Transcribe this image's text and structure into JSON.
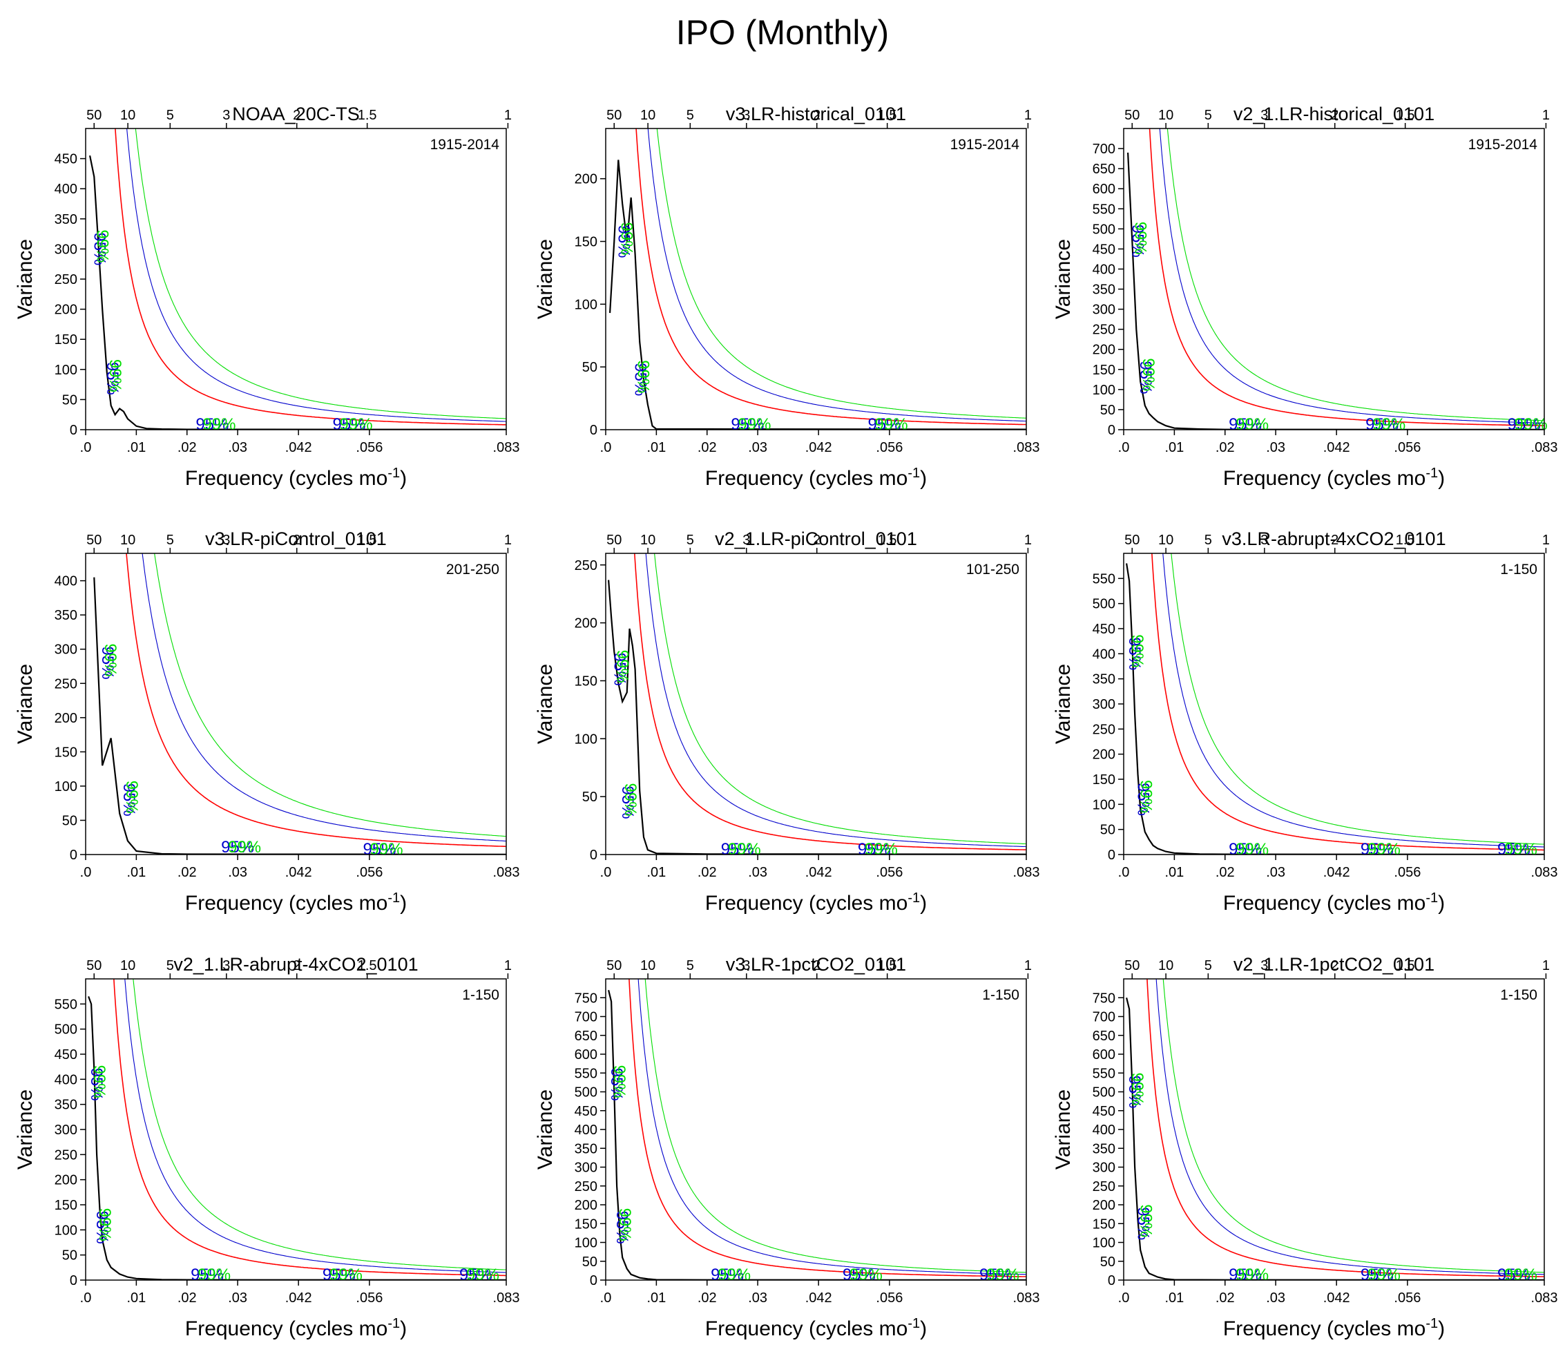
{
  "figure": {
    "title": "IPO (Monthly)"
  },
  "labels": {
    "ylabel": "Variance",
    "xlabel_main": "Frequency (cycles mo",
    "xlabel_sup": "-1",
    "xlabel_close": ")",
    "conf_95": "95%",
    "conf_99": "99%"
  },
  "colors": {
    "spectrum": "#000000",
    "red_noise": "#ff0000",
    "conf95": "#0000cc",
    "conf99": "#00dd00"
  },
  "chart_data": [
    {
      "type": "line",
      "title": "NOAA_20C-TS",
      "period": "1915-2014",
      "xlim": [
        0,
        0.083
      ],
      "ylim": [
        0,
        500
      ],
      "x_ticks": [
        0,
        0.01,
        0.02,
        0.03,
        0.042,
        0.056,
        0.083
      ],
      "x_tick_labels": [
        ".0",
        ".01",
        ".02",
        ".03",
        ".042",
        ".056",
        ".083"
      ],
      "top_ticks": [
        0.00167,
        0.00833,
        0.01667,
        0.02778,
        0.04167,
        0.05556,
        0.08333
      ],
      "top_tick_labels": [
        "50",
        "10",
        "5",
        "3",
        "2",
        "1.5",
        "1"
      ],
      "y_ticks": [
        0,
        50,
        100,
        150,
        200,
        250,
        300,
        350,
        400,
        450
      ],
      "spectrum": [
        [
          0.00083,
          455
        ],
        [
          0.00167,
          420
        ],
        [
          0.0025,
          310
        ],
        [
          0.0033,
          200
        ],
        [
          0.0042,
          95
        ],
        [
          0.005,
          40
        ],
        [
          0.0058,
          25
        ],
        [
          0.0067,
          35
        ],
        [
          0.0075,
          30
        ],
        [
          0.0083,
          18
        ],
        [
          0.01,
          6
        ],
        [
          0.012,
          2
        ],
        [
          0.015,
          1
        ],
        [
          0.02,
          0.5
        ],
        [
          0.083,
          0.2
        ]
      ],
      "red_scale": 180,
      "conf_labels": [
        [
          0.00167,
          300
        ],
        [
          0.0042,
          85
        ],
        [
          0.025,
          0
        ],
        [
          0.052,
          0
        ]
      ]
    },
    {
      "type": "line",
      "title": "v3.LR-historical_0101",
      "period": "1915-2014",
      "xlim": [
        0,
        0.083
      ],
      "ylim": [
        0,
        240
      ],
      "x_ticks": [
        0,
        0.01,
        0.02,
        0.03,
        0.042,
        0.056,
        0.083
      ],
      "x_tick_labels": [
        ".0",
        ".01",
        ".02",
        ".03",
        ".042",
        ".056",
        ".083"
      ],
      "top_ticks": [
        0.00167,
        0.00833,
        0.01667,
        0.02778,
        0.04167,
        0.05556,
        0.08333
      ],
      "top_tick_labels": [
        "50",
        "10",
        "5",
        "3",
        "2",
        "1.5",
        "1"
      ],
      "y_ticks": [
        0,
        50,
        100,
        150,
        200
      ],
      "spectrum": [
        [
          0.00083,
          93
        ],
        [
          0.00167,
          150
        ],
        [
          0.0025,
          215
        ],
        [
          0.0033,
          180
        ],
        [
          0.0042,
          150
        ],
        [
          0.005,
          185
        ],
        [
          0.0058,
          140
        ],
        [
          0.0067,
          70
        ],
        [
          0.0075,
          40
        ],
        [
          0.0083,
          20
        ],
        [
          0.0092,
          3
        ],
        [
          0.01,
          0.5
        ],
        [
          0.083,
          0.2
        ]
      ],
      "red_scale": 90,
      "conf_labels": [
        [
          0.0025,
          150
        ],
        [
          0.0058,
          40
        ],
        [
          0.028,
          0
        ],
        [
          0.055,
          0
        ]
      ]
    },
    {
      "type": "line",
      "title": "v2_1.LR-historical_0101",
      "period": "1915-2014",
      "xlim": [
        0,
        0.083
      ],
      "ylim": [
        0,
        750
      ],
      "x_ticks": [
        0,
        0.01,
        0.02,
        0.03,
        0.042,
        0.056,
        0.083
      ],
      "x_tick_labels": [
        ".0",
        ".01",
        ".02",
        ".03",
        ".042",
        ".056",
        ".083"
      ],
      "top_ticks": [
        0.00167,
        0.00833,
        0.01667,
        0.02778,
        0.04167,
        0.05556,
        0.08333
      ],
      "top_tick_labels": [
        "50",
        "10",
        "5",
        "3",
        "2",
        "1.5",
        "1"
      ],
      "y_ticks": [
        0,
        50,
        100,
        150,
        200,
        250,
        300,
        350,
        400,
        450,
        500,
        550,
        600,
        650,
        700
      ],
      "spectrum": [
        [
          0.00083,
          690
        ],
        [
          0.00167,
          470
        ],
        [
          0.0025,
          250
        ],
        [
          0.0033,
          120
        ],
        [
          0.0042,
          60
        ],
        [
          0.005,
          40
        ],
        [
          0.0058,
          30
        ],
        [
          0.0067,
          20
        ],
        [
          0.0083,
          10
        ],
        [
          0.01,
          4
        ],
        [
          0.015,
          1.5
        ],
        [
          0.02,
          0.5
        ],
        [
          0.083,
          0.2
        ]
      ],
      "red_scale": 220,
      "conf_labels": [
        [
          0.00167,
          470
        ],
        [
          0.0033,
          130
        ],
        [
          0.024,
          0
        ],
        [
          0.051,
          0
        ],
        [
          0.079,
          0
        ]
      ]
    },
    {
      "type": "line",
      "title": "v3.LR-piControl_0101",
      "period": "201-250",
      "xlim": [
        0,
        0.083
      ],
      "ylim": [
        0,
        440
      ],
      "x_ticks": [
        0,
        0.01,
        0.02,
        0.03,
        0.042,
        0.056,
        0.083
      ],
      "x_tick_labels": [
        ".0",
        ".01",
        ".02",
        ".03",
        ".042",
        ".056",
        ".083"
      ],
      "top_ticks": [
        0.00167,
        0.00833,
        0.01667,
        0.02778,
        0.04167,
        0.05556,
        0.08333
      ],
      "top_tick_labels": [
        "50",
        "10",
        "5",
        "3",
        "2",
        "1.5",
        "1"
      ],
      "y_ticks": [
        0,
        50,
        100,
        150,
        200,
        250,
        300,
        350,
        400
      ],
      "spectrum": [
        [
          0.00167,
          405
        ],
        [
          0.0033,
          130
        ],
        [
          0.005,
          170
        ],
        [
          0.0067,
          60
        ],
        [
          0.0083,
          20
        ],
        [
          0.01,
          5
        ],
        [
          0.015,
          1
        ],
        [
          0.02,
          0.5
        ],
        [
          0.083,
          0.2
        ]
      ],
      "red_scale": 260,
      "conf_labels": [
        [
          0.0033,
          280
        ],
        [
          0.0075,
          80
        ],
        [
          0.03,
          3
        ],
        [
          0.058,
          0
        ]
      ]
    },
    {
      "type": "line",
      "title": "v2_1.LR-piControl_0101",
      "period": "101-250",
      "xlim": [
        0,
        0.083
      ],
      "ylim": [
        0,
        260
      ],
      "x_ticks": [
        0,
        0.01,
        0.02,
        0.03,
        0.042,
        0.056,
        0.083
      ],
      "x_tick_labels": [
        ".0",
        ".01",
        ".02",
        ".03",
        ".042",
        ".056",
        ".083"
      ],
      "top_ticks": [
        0.00167,
        0.00833,
        0.01667,
        0.02778,
        0.04167,
        0.05556,
        0.08333
      ],
      "top_tick_labels": [
        "50",
        "10",
        "5",
        "3",
        "2",
        "1.5",
        "1"
      ],
      "y_ticks": [
        0,
        50,
        100,
        150,
        200,
        250
      ],
      "spectrum": [
        [
          0.00056,
          237
        ],
        [
          0.00111,
          205
        ],
        [
          0.00167,
          175
        ],
        [
          0.0025,
          148
        ],
        [
          0.0033,
          132
        ],
        [
          0.0042,
          140
        ],
        [
          0.0047,
          195
        ],
        [
          0.0053,
          180
        ],
        [
          0.0058,
          160
        ],
        [
          0.0067,
          55
        ],
        [
          0.0075,
          15
        ],
        [
          0.0083,
          4
        ],
        [
          0.01,
          1
        ],
        [
          0.02,
          0.4
        ],
        [
          0.083,
          0.2
        ]
      ],
      "red_scale": 90,
      "conf_labels": [
        [
          0.0017,
          160
        ],
        [
          0.0033,
          45
        ],
        [
          0.026,
          0
        ],
        [
          0.053,
          0
        ]
      ]
    },
    {
      "type": "line",
      "title": "v3.LR-abrupt-4xCO2_0101",
      "period": "1-150",
      "xlim": [
        0,
        0.083
      ],
      "ylim": [
        0,
        600
      ],
      "x_ticks": [
        0,
        0.01,
        0.02,
        0.03,
        0.042,
        0.056,
        0.083
      ],
      "x_tick_labels": [
        ".0",
        ".01",
        ".02",
        ".03",
        ".042",
        ".056",
        ".083"
      ],
      "top_ticks": [
        0.00167,
        0.00833,
        0.01667,
        0.02778,
        0.04167,
        0.05556,
        0.08333
      ],
      "top_tick_labels": [
        "50",
        "10",
        "5",
        "3",
        "2",
        "1.5",
        "1"
      ],
      "y_ticks": [
        0,
        50,
        100,
        150,
        200,
        250,
        300,
        350,
        400,
        450,
        500,
        550
      ],
      "spectrum": [
        [
          0.00056,
          580
        ],
        [
          0.00111,
          545
        ],
        [
          0.00167,
          420
        ],
        [
          0.0022,
          280
        ],
        [
          0.0028,
          160
        ],
        [
          0.0033,
          90
        ],
        [
          0.0042,
          45
        ],
        [
          0.005,
          30
        ],
        [
          0.0058,
          18
        ],
        [
          0.0067,
          12
        ],
        [
          0.0083,
          6
        ],
        [
          0.01,
          3
        ],
        [
          0.015,
          1
        ],
        [
          0.02,
          0.5
        ],
        [
          0.083,
          0.2
        ]
      ],
      "red_scale": 200,
      "conf_labels": [
        [
          0.00111,
          400
        ],
        [
          0.0028,
          110
        ],
        [
          0.024,
          0
        ],
        [
          0.05,
          0
        ],
        [
          0.077,
          0
        ]
      ]
    },
    {
      "type": "line",
      "title": "v2_1.LR-abrupt-4xCO2_0101",
      "period": "1-150",
      "xlim": [
        0,
        0.083
      ],
      "ylim": [
        0,
        600
      ],
      "x_ticks": [
        0,
        0.01,
        0.02,
        0.03,
        0.042,
        0.056,
        0.083
      ],
      "x_tick_labels": [
        ".0",
        ".01",
        ".02",
        ".03",
        ".042",
        ".056",
        ".083"
      ],
      "top_ticks": [
        0.00167,
        0.00833,
        0.01667,
        0.02778,
        0.04167,
        0.05556,
        0.08333
      ],
      "top_tick_labels": [
        "50",
        "10",
        "5",
        "3",
        "2",
        "1.5",
        "1"
      ],
      "y_ticks": [
        0,
        50,
        100,
        150,
        200,
        250,
        300,
        350,
        400,
        450,
        500,
        550
      ],
      "spectrum": [
        [
          0.00056,
          565
        ],
        [
          0.00111,
          550
        ],
        [
          0.00167,
          420
        ],
        [
          0.0022,
          250
        ],
        [
          0.0028,
          140
        ],
        [
          0.0033,
          80
        ],
        [
          0.0042,
          40
        ],
        [
          0.005,
          25
        ],
        [
          0.0067,
          12
        ],
        [
          0.0083,
          6
        ],
        [
          0.01,
          3
        ],
        [
          0.015,
          1
        ],
        [
          0.02,
          0.5
        ],
        [
          0.083,
          0.2
        ]
      ],
      "red_scale": 200,
      "conf_labels": [
        [
          0.00111,
          390
        ],
        [
          0.0022,
          105
        ],
        [
          0.024,
          0
        ],
        [
          0.05,
          0
        ],
        [
          0.077,
          0
        ]
      ]
    },
    {
      "type": "line",
      "title": "v3.LR-1pctCO2_0101",
      "period": "1-150",
      "xlim": [
        0,
        0.083
      ],
      "ylim": [
        0,
        800
      ],
      "x_ticks": [
        0,
        0.01,
        0.02,
        0.03,
        0.042,
        0.056,
        0.083
      ],
      "x_tick_labels": [
        ".0",
        ".01",
        ".02",
        ".03",
        ".042",
        ".056",
        ".083"
      ],
      "top_ticks": [
        0.00167,
        0.00833,
        0.01667,
        0.02778,
        0.04167,
        0.05556,
        0.08333
      ],
      "top_tick_labels": [
        "50",
        "10",
        "5",
        "3",
        "2",
        "1.5",
        "1"
      ],
      "y_ticks": [
        0,
        50,
        100,
        150,
        200,
        250,
        300,
        350,
        400,
        450,
        500,
        550,
        600,
        650,
        700,
        750
      ],
      "spectrum": [
        [
          0.00056,
          770
        ],
        [
          0.00111,
          740
        ],
        [
          0.00167,
          500
        ],
        [
          0.0022,
          250
        ],
        [
          0.0028,
          120
        ],
        [
          0.0033,
          60
        ],
        [
          0.0042,
          30
        ],
        [
          0.005,
          15
        ],
        [
          0.0067,
          6
        ],
        [
          0.0083,
          3
        ],
        [
          0.01,
          1
        ],
        [
          0.02,
          0.5
        ],
        [
          0.083,
          0.2
        ]
      ],
      "red_scale": 200,
      "conf_labels": [
        [
          0.00111,
          520
        ],
        [
          0.0022,
          140
        ],
        [
          0.024,
          0
        ],
        [
          0.05,
          0
        ],
        [
          0.077,
          0
        ]
      ]
    },
    {
      "type": "line",
      "title": "v2_1.LR-1pctCO2_0101",
      "period": "1-150",
      "xlim": [
        0,
        0.083
      ],
      "ylim": [
        0,
        800
      ],
      "x_ticks": [
        0,
        0.01,
        0.02,
        0.03,
        0.042,
        0.056,
        0.083
      ],
      "x_tick_labels": [
        ".0",
        ".01",
        ".02",
        ".03",
        ".042",
        ".056",
        ".083"
      ],
      "top_ticks": [
        0.00167,
        0.00833,
        0.01667,
        0.02778,
        0.04167,
        0.05556,
        0.08333
      ],
      "top_tick_labels": [
        "50",
        "10",
        "5",
        "3",
        "2",
        "1.5",
        "1"
      ],
      "y_ticks": [
        0,
        50,
        100,
        150,
        200,
        250,
        300,
        350,
        400,
        450,
        500,
        550,
        600,
        650,
        700,
        750
      ],
      "spectrum": [
        [
          0.00056,
          750
        ],
        [
          0.00111,
          720
        ],
        [
          0.00167,
          520
        ],
        [
          0.0022,
          300
        ],
        [
          0.0028,
          160
        ],
        [
          0.0033,
          80
        ],
        [
          0.0042,
          35
        ],
        [
          0.005,
          18
        ],
        [
          0.0067,
          8
        ],
        [
          0.0083,
          3
        ],
        [
          0.01,
          1
        ],
        [
          0.02,
          0.5
        ],
        [
          0.083,
          0.2
        ]
      ],
      "red_scale": 200,
      "conf_labels": [
        [
          0.00111,
          500
        ],
        [
          0.0028,
          150
        ],
        [
          0.024,
          0
        ],
        [
          0.05,
          0
        ],
        [
          0.077,
          0
        ]
      ]
    }
  ]
}
